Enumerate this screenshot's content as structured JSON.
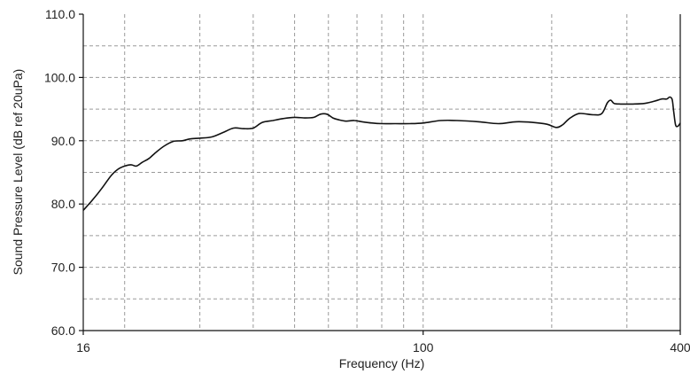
{
  "chart_data": {
    "type": "line",
    "xlabel": "Frequency (Hz)",
    "ylabel": "Sound Pressure Level (dB ref 20uPa)",
    "xscale": "log",
    "xlim": [
      16,
      400
    ],
    "ylim": [
      60,
      110
    ],
    "x_tick_labels": [
      {
        "value": 16,
        "label": "16"
      },
      {
        "value": 100,
        "label": "100"
      },
      {
        "value": 400,
        "label": "400"
      }
    ],
    "y_tick_labels": [
      {
        "value": 60,
        "label": "60.0"
      },
      {
        "value": 70,
        "label": "70.0"
      },
      {
        "value": 80,
        "label": "80.0"
      },
      {
        "value": 90,
        "label": "90.0"
      },
      {
        "value": 100,
        "label": "100.0"
      },
      {
        "value": 110,
        "label": "110.0"
      }
    ],
    "x_gridlines": [
      20,
      30,
      40,
      50,
      60,
      70,
      80,
      90,
      100,
      200,
      300
    ],
    "y_gridlines": [
      65,
      70,
      75,
      80,
      85,
      90,
      95,
      100,
      105
    ],
    "grid": true,
    "grid_style": "dashed",
    "series": [
      {
        "color": "#111111",
        "x": [
          16,
          16.8,
          17.7,
          18.6,
          19.3,
          20,
          20.7,
          21.3,
          22,
          22.8,
          23.7,
          24.8,
          26,
          27.3,
          28.5,
          30,
          32,
          34,
          36,
          38,
          40,
          42,
          44.5,
          47,
          50,
          53,
          55.5,
          57.5,
          59.5,
          61.5,
          63.5,
          66,
          69,
          72,
          76,
          80,
          86,
          93,
          100,
          110,
          120,
          135,
          150,
          165,
          180,
          195,
          205,
          212,
          220,
          232,
          250,
          262,
          270,
          275,
          280,
          290,
          310,
          330,
          350,
          362,
          372,
          378,
          383,
          386,
          390,
          395,
          400
        ],
        "y": [
          79,
          80.6,
          82.5,
          84.5,
          85.5,
          86,
          86.2,
          86,
          86.6,
          87.2,
          88.2,
          89.2,
          89.9,
          90,
          90.3,
          90.4,
          90.6,
          91.3,
          92,
          91.9,
          92,
          92.9,
          93.2,
          93.5,
          93.7,
          93.6,
          93.7,
          94.2,
          94.2,
          93.6,
          93.3,
          93.1,
          93.2,
          93.0,
          92.8,
          92.7,
          92.7,
          92.7,
          92.8,
          93.2,
          93.2,
          93.0,
          92.7,
          93.0,
          92.9,
          92.6,
          92.1,
          92.5,
          93.5,
          94.3,
          94.1,
          94.3,
          96.0,
          96.4,
          95.9,
          95.8,
          95.8,
          95.9,
          96.3,
          96.6,
          96.6,
          96.9,
          96.5,
          94.7,
          92.5,
          92.3,
          92.8
        ]
      }
    ]
  }
}
